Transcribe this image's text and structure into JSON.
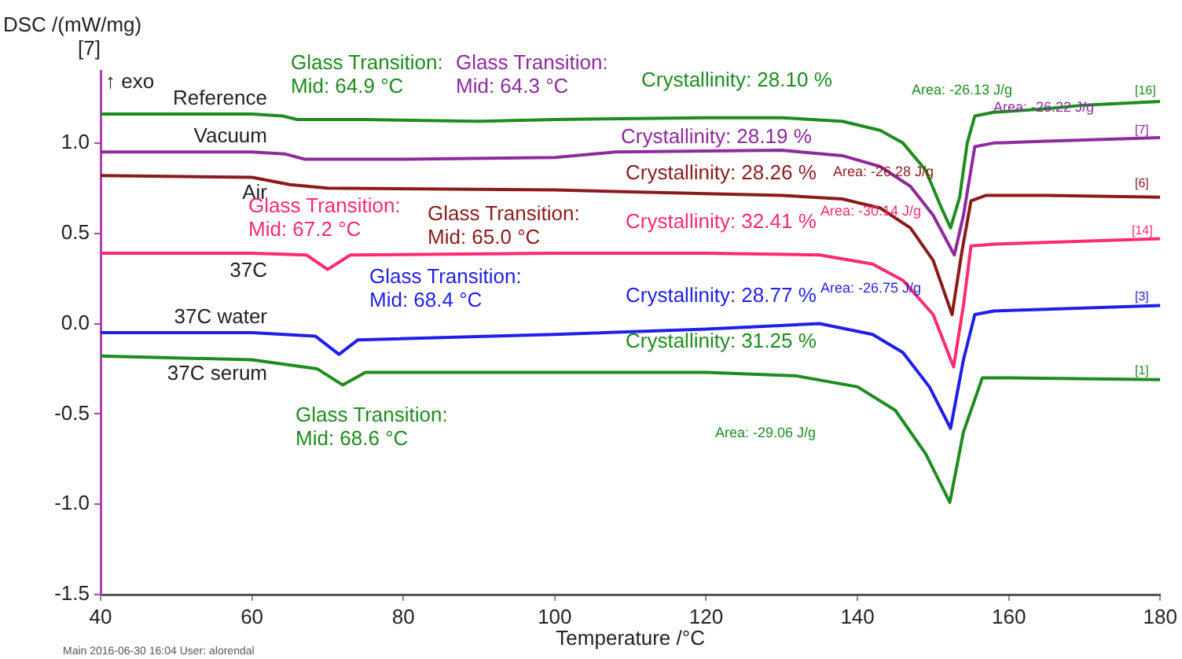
{
  "chart_data": {
    "type": "line",
    "xlabel": "Temperature /°C",
    "ylabel": "DSC /(mW/mg)\n[7]",
    "xlim": [
      40,
      180
    ],
    "xticks": [
      40,
      60,
      80,
      100,
      120,
      140,
      160,
      180
    ],
    "ylim": [
      -1.5,
      1.4
    ],
    "yticks": [
      -1.5,
      {
        "value": -1.0,
        "label": "-1.0"
      },
      -0.5,
      {
        "value": 0.0,
        "label": "0.0"
      },
      0.5,
      {
        "value": 1.0,
        "label": "1.0"
      }
    ],
    "grid": false,
    "legend": false,
    "marker": "none",
    "line_style": "solid",
    "series": [
      {
        "name": "Reference",
        "color": "#1e8c1e",
        "x": [
          40,
          60,
          64,
          66,
          75,
          90,
          100,
          120,
          130,
          138,
          143,
          146,
          149,
          151,
          152.3,
          153.5,
          154.5,
          155.5,
          158,
          165,
          170,
          180
        ],
        "values": [
          1.16,
          1.16,
          1.15,
          1.13,
          1.13,
          1.12,
          1.13,
          1.14,
          1.14,
          1.12,
          1.07,
          1.0,
          0.85,
          0.65,
          0.53,
          0.7,
          1.0,
          1.15,
          1.17,
          1.19,
          1.21,
          1.23
        ]
      },
      {
        "name": "Vacuum",
        "color": "#8e2a9e",
        "x": [
          40,
          60,
          64.3,
          67,
          80,
          100,
          108,
          130,
          138,
          143,
          147,
          150,
          152.8,
          154,
          155.5,
          158,
          165,
          180
        ],
        "values": [
          0.95,
          0.95,
          0.94,
          0.91,
          0.91,
          0.92,
          0.95,
          0.96,
          0.93,
          0.87,
          0.76,
          0.6,
          0.38,
          0.6,
          0.98,
          1.0,
          1.01,
          1.03
        ]
      },
      {
        "name": "Air",
        "color": "#8b1a1a",
        "x": [
          40,
          60,
          65,
          70,
          100,
          120,
          130,
          138,
          143,
          147,
          150,
          152.5,
          153.8,
          155,
          157,
          165,
          180
        ],
        "values": [
          0.82,
          0.81,
          0.77,
          0.75,
          0.74,
          0.72,
          0.71,
          0.69,
          0.64,
          0.53,
          0.35,
          0.05,
          0.4,
          0.68,
          0.71,
          0.71,
          0.7
        ]
      },
      {
        "name": "37C",
        "color": "#ff2a72",
        "x": [
          40,
          60,
          67.2,
          70,
          73,
          100,
          120,
          135,
          142,
          146,
          150,
          152.7,
          154,
          155,
          158,
          165,
          180
        ],
        "values": [
          0.39,
          0.39,
          0.38,
          0.3,
          0.38,
          0.39,
          0.39,
          0.38,
          0.33,
          0.24,
          0.05,
          -0.24,
          0.1,
          0.43,
          0.44,
          0.45,
          0.47
        ]
      },
      {
        "name": "37C water",
        "color": "#1f1fe8",
        "x": [
          40,
          60,
          68.4,
          71.5,
          74,
          100,
          120,
          135,
          142,
          146,
          149.5,
          152.3,
          154,
          155.5,
          158,
          165,
          180
        ],
        "values": [
          -0.05,
          -0.05,
          -0.07,
          -0.17,
          -0.09,
          -0.06,
          -0.03,
          0.0,
          -0.06,
          -0.16,
          -0.35,
          -0.58,
          -0.2,
          0.05,
          0.07,
          0.08,
          0.1
        ]
      },
      {
        "name": "37C serum",
        "color": "#1e8c1e",
        "x": [
          40,
          60,
          68.6,
          72,
          75,
          100,
          120,
          132,
          140,
          145,
          149,
          152.2,
          154,
          156.5,
          160,
          180
        ],
        "values": [
          -0.18,
          -0.2,
          -0.25,
          -0.34,
          -0.27,
          -0.27,
          -0.27,
          -0.29,
          -0.35,
          -0.48,
          -0.72,
          -0.99,
          -0.6,
          -0.3,
          -0.3,
          -0.31
        ]
      }
    ],
    "annotations": [
      "↑ exo",
      "Glass Transition:\nMid: 64.9 °C",
      "Glass Transition:\nMid: 64.3 °C",
      "Crystallinity: 28.10 %",
      "Area: -26.13 J/g",
      "Area: -26.22 J/g",
      "Crystallinity: 28.19 %",
      "Crystallinity: 28.26 %",
      "Area: -26.28 J/g",
      "Glass Transition:\nMid: 65.0 °C",
      "Glass Transition:\nMid: 67.2 °C",
      "Crystallinity: 32.41 %",
      "Area: -30.14 J/g",
      "Glass Transition:\nMid: 68.4 °C",
      "Crystallinity: 28.77 %",
      "Area: -26.75 J/g",
      "Crystallinity: 31.25 %",
      "Glass Transition:\nMid: 68.6 °C",
      "Area: -29.06 J/g",
      "[16]",
      "[7]",
      "[6]",
      "[14]",
      "[3]",
      "[1]",
      "Main 2016-06-30 16:04 User: alorendal"
    ]
  }
}
